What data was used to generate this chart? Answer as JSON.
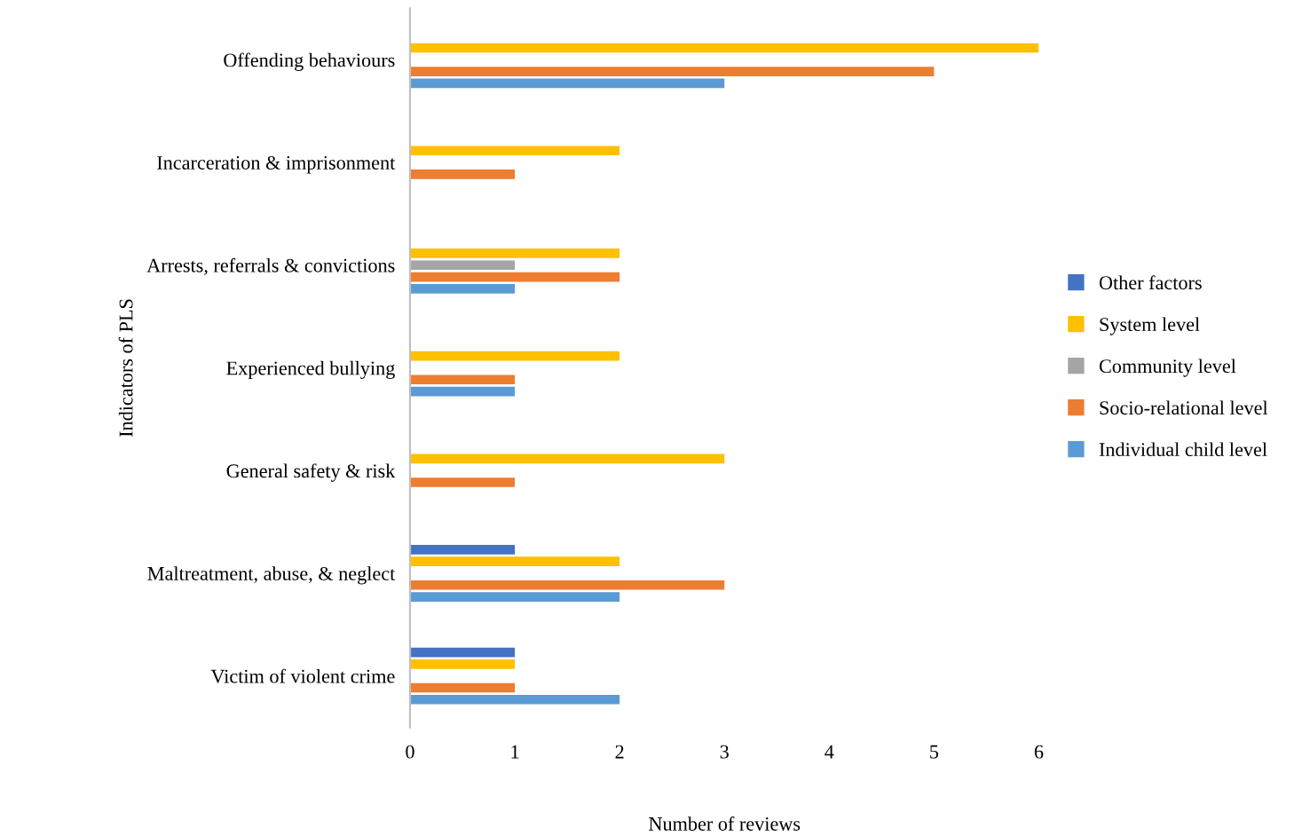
{
  "chart_data": {
    "type": "bar",
    "orientation": "horizontal",
    "xlabel": "Number of reviews",
    "ylabel": "Indicators of PLS",
    "categories": [
      "Offending behaviours",
      "Incarceration & imprisonment",
      "Arrests, referrals & convictions",
      "Experienced bullying",
      "General safety & risk",
      "Maltreatment, abuse, & neglect",
      "Victim of violent crime"
    ],
    "series": [
      {
        "name": "Other factors",
        "color": "#4472c4",
        "values": [
          null,
          null,
          null,
          null,
          null,
          1,
          1
        ]
      },
      {
        "name": "System level",
        "color": "#ffc000",
        "values": [
          6,
          2,
          2,
          2,
          3,
          2,
          1
        ]
      },
      {
        "name": "Community level",
        "color": "#a5a5a5",
        "values": [
          null,
          null,
          1,
          null,
          null,
          null,
          null
        ]
      },
      {
        "name": "Socio-relational level",
        "color": "#ed7d31",
        "values": [
          5,
          1,
          2,
          1,
          1,
          3,
          1
        ]
      },
      {
        "name": "Individual child level",
        "color": "#5b9bd5",
        "values": [
          3,
          null,
          1,
          1,
          null,
          2,
          2
        ]
      }
    ],
    "xlim": [
      0,
      6
    ],
    "xticks": [
      0,
      1,
      2,
      3,
      4,
      5,
      6
    ],
    "grid": false,
    "legend": "right"
  }
}
